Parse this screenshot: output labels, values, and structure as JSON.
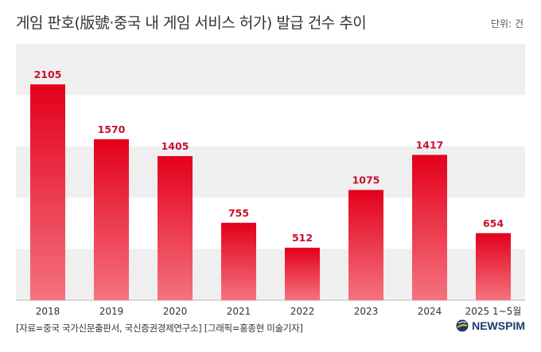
{
  "header": {
    "title": "게임 판호(版號·중국 내 게임 서비스 허가) 발급 건수 추이",
    "unit": "단위: 건"
  },
  "footer": {
    "source": "[자료=중국 국가신문출판서, 국신증권경제연구소] [그래픽=홍종현 미술기자]",
    "brand": "NEWSPIM"
  },
  "colors": {
    "bar_top": "#e3001b",
    "bar_bottom": "#f4737f",
    "band": "#efefef",
    "label": "#c8102e"
  },
  "chart_data": {
    "type": "bar",
    "categories": [
      "2018",
      "2019",
      "2020",
      "2021",
      "2022",
      "2023",
      "2024",
      "2025 1~5월"
    ],
    "values": [
      2105,
      1570,
      1405,
      755,
      512,
      1075,
      1417,
      654
    ],
    "ylim": [
      0,
      2500
    ],
    "grid": "alternating horizontal bands"
  }
}
